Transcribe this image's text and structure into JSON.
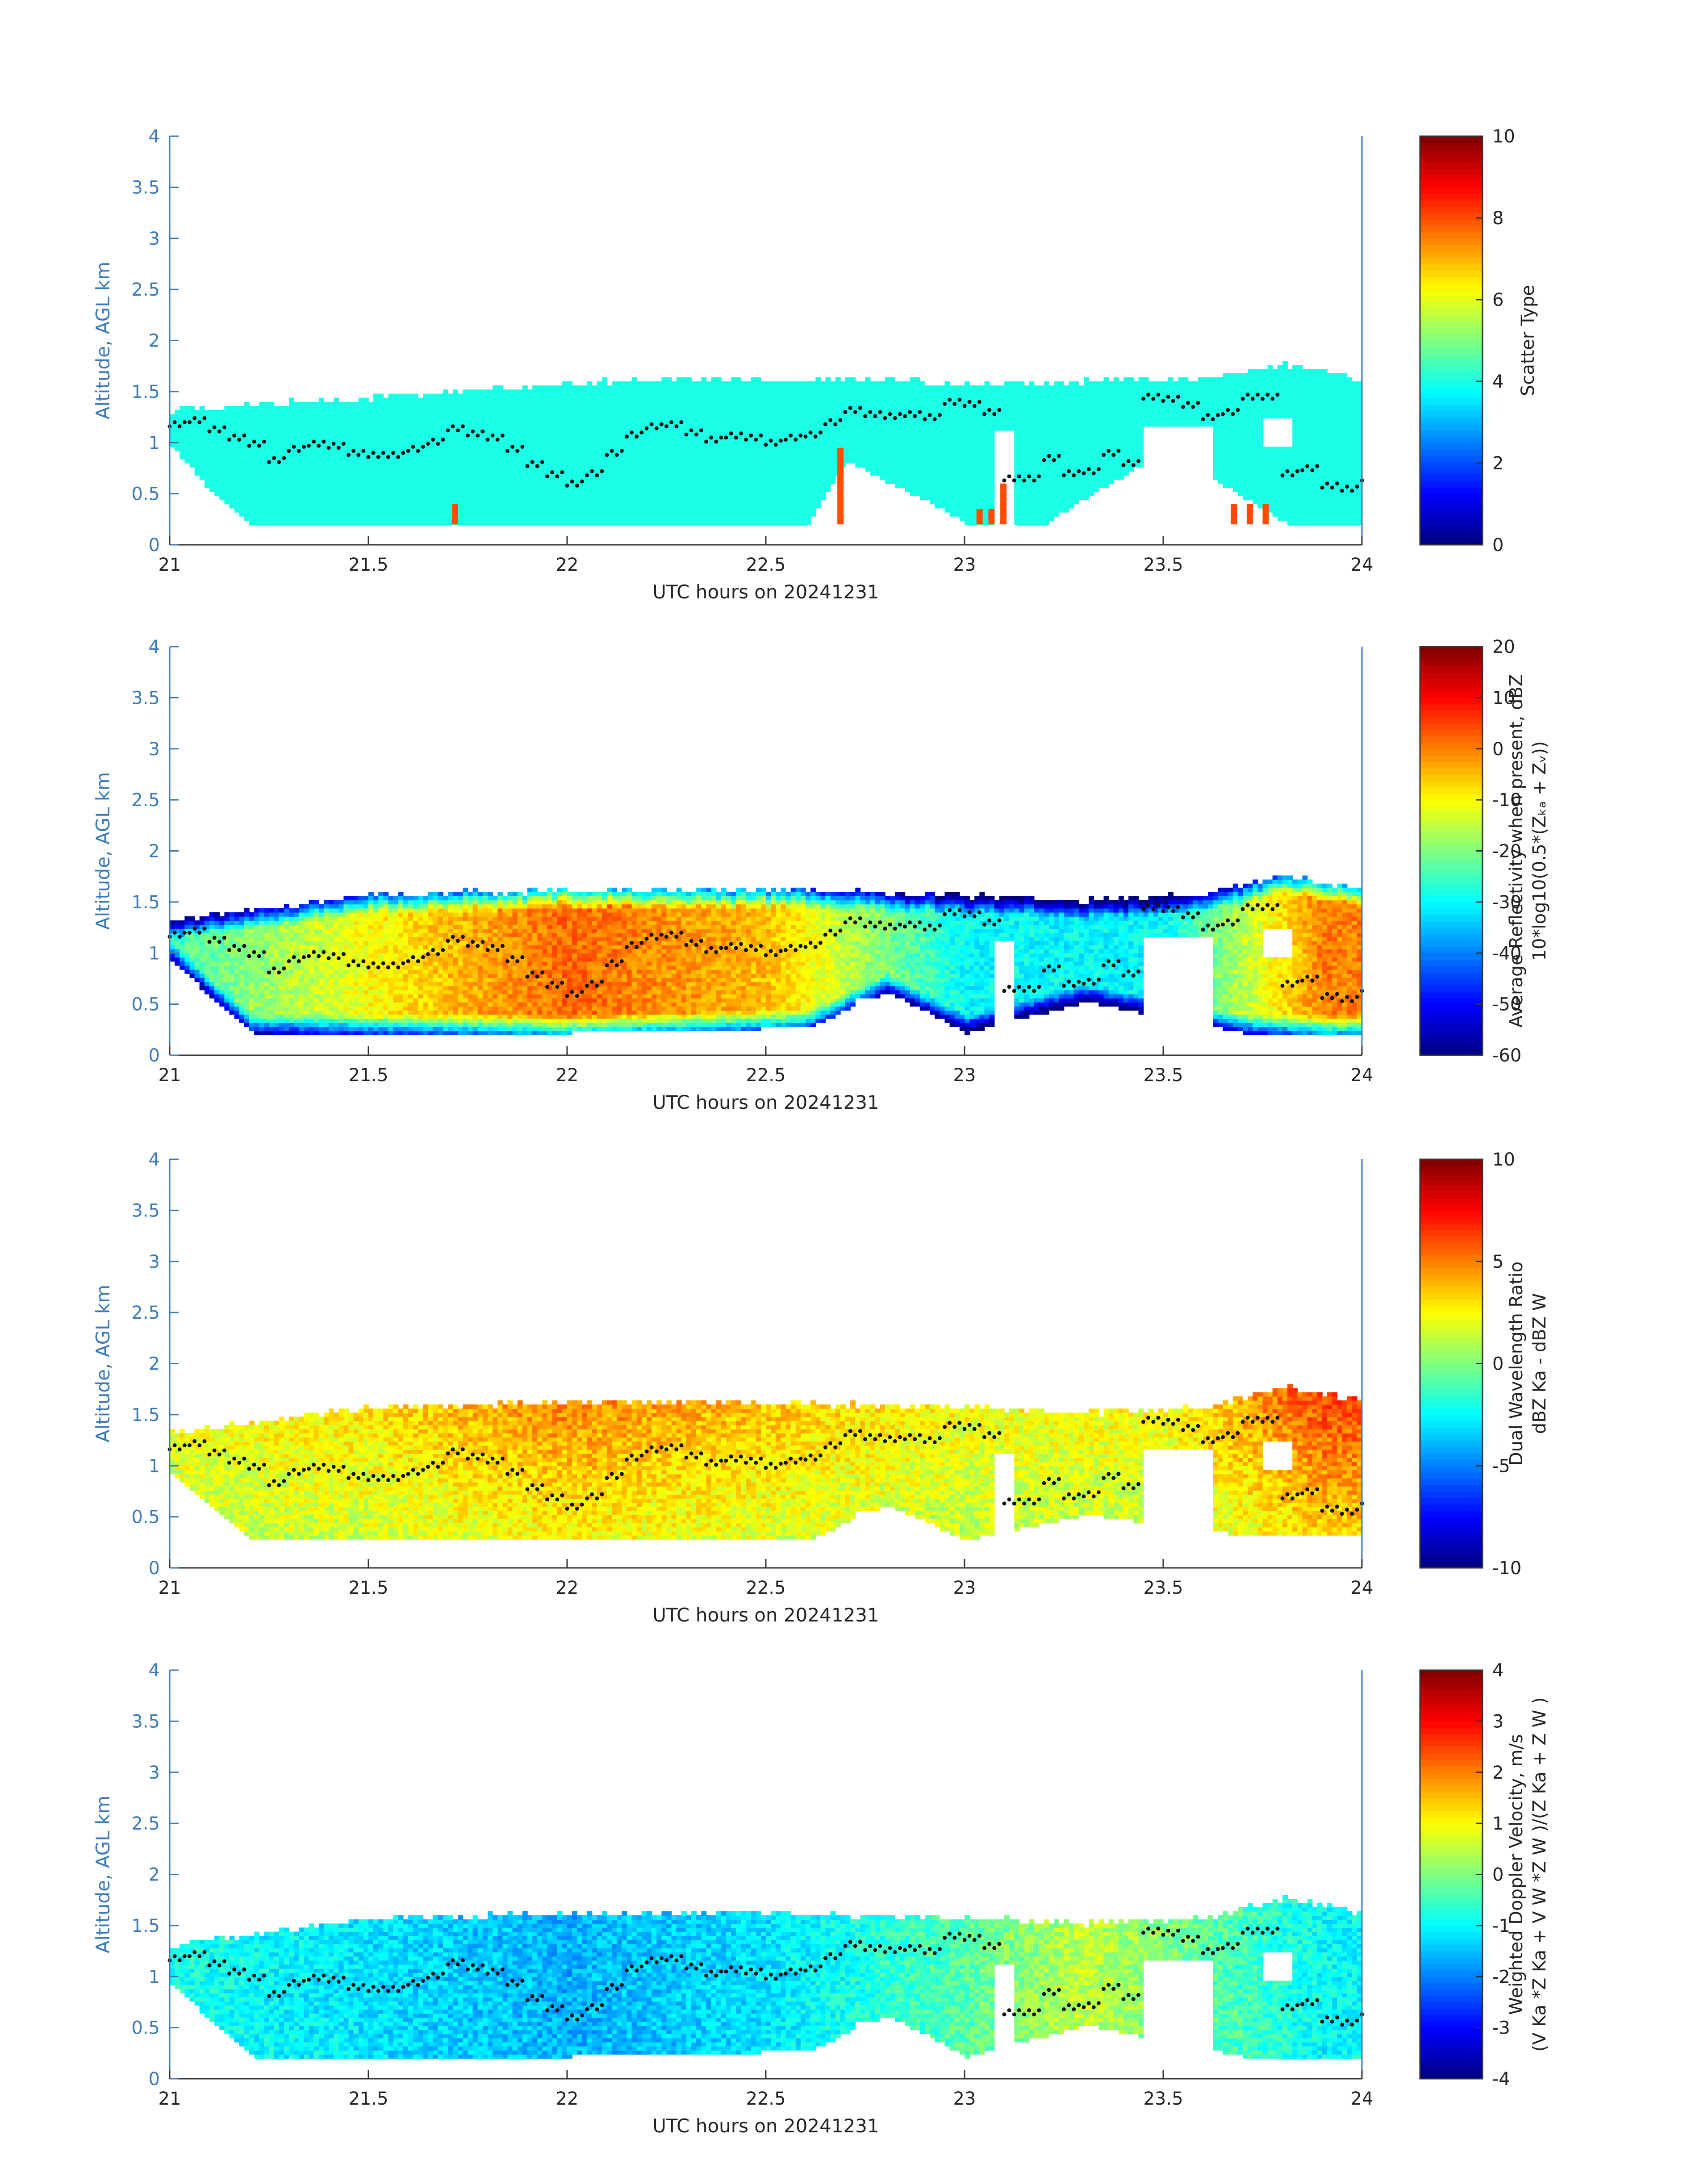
{
  "figure": {
    "panels": [
      {
        "ylabel": "Altitude, AGL km",
        "xlabel": "UTC hours on 20241231",
        "x_ticks": [
          "21",
          "21.5",
          "22",
          "22.5",
          "23",
          "23.5",
          "24"
        ],
        "y_ticks": [
          "0",
          "0.5",
          "1",
          "1.5",
          "2",
          "2.5",
          "3",
          "3.5",
          "4"
        ],
        "colorbar": {
          "label_lines": [
            "Scatter Type"
          ],
          "ticks": [
            "0",
            "2",
            "4",
            "6",
            "8",
            "10"
          ]
        }
      },
      {
        "ylabel": "Altitude, AGL km",
        "xlabel": "UTC hours on 20241231",
        "x_ticks": [
          "21",
          "21.5",
          "22",
          "22.5",
          "23",
          "23.5",
          "24"
        ],
        "y_ticks": [
          "0",
          "0.5",
          "1",
          "1.5",
          "2",
          "2.5",
          "3",
          "3.5",
          "4"
        ],
        "colorbar": {
          "label_lines": [
            "Average Reflectivity when present, dBZ",
            "10*log10(0.5*(Zₖₐ + Zᵥ))"
          ],
          "ticks": [
            "-60",
            "-50",
            "-40",
            "-30",
            "-20",
            "-10",
            "0",
            "10",
            "20"
          ]
        }
      },
      {
        "ylabel": "Altitude, AGL km",
        "xlabel": "UTC hours on 20241231",
        "x_ticks": [
          "21",
          "21.5",
          "22",
          "22.5",
          "23",
          "23.5",
          "24"
        ],
        "y_ticks": [
          "0",
          "0.5",
          "1",
          "1.5",
          "2",
          "2.5",
          "3",
          "3.5",
          "4"
        ],
        "colorbar": {
          "label_lines": [
            "Dual Wavelength Ratio",
            "dBZ Ka - dBZ W"
          ],
          "ticks": [
            "-10",
            "-5",
            "0",
            "5",
            "10"
          ]
        }
      },
      {
        "ylabel": "Altitude, AGL km",
        "xlabel": "UTC hours on 20241231",
        "x_ticks": [
          "21",
          "21.5",
          "22",
          "22.5",
          "23",
          "23.5",
          "24"
        ],
        "y_ticks": [
          "0",
          "0.5",
          "1",
          "1.5",
          "2",
          "2.5",
          "3",
          "3.5",
          "4"
        ],
        "colorbar": {
          "label_lines": [
            "Weighted Doppler Velocity, m/s",
            "(V Ka *Z Ka + V W *Z W )/(Z Ka + Z W )"
          ],
          "ticks": [
            "-4",
            "-3",
            "-2",
            "-1",
            "0",
            "1",
            "2",
            "3",
            "4"
          ]
        }
      }
    ]
  },
  "chart_data": [
    {
      "type": "heatmap",
      "xlabel": "UTC hours on 20241231",
      "ylabel": "Altitude, AGL km",
      "xlim": [
        21,
        24
      ],
      "ylim": [
        0,
        4
      ],
      "colorbar_label": "Scatter Type",
      "clim": [
        0,
        10
      ],
      "echo_top_km": [
        [
          21.0,
          1.3
        ],
        [
          21.2,
          1.35
        ],
        [
          21.4,
          1.4
        ],
        [
          21.6,
          1.45
        ],
        [
          21.8,
          1.5
        ],
        [
          22.0,
          1.55
        ],
        [
          22.2,
          1.6
        ],
        [
          22.4,
          1.6
        ],
        [
          22.6,
          1.6
        ],
        [
          22.8,
          1.6
        ],
        [
          23.0,
          1.55
        ],
        [
          23.2,
          1.55
        ],
        [
          23.4,
          1.6
        ],
        [
          23.6,
          1.6
        ],
        [
          23.8,
          1.75
        ],
        [
          24.0,
          1.6
        ]
      ],
      "echo_base_km": [
        [
          21.0,
          0.95
        ],
        [
          21.1,
          0.5
        ],
        [
          21.2,
          0.2
        ],
        [
          21.7,
          0.2
        ],
        [
          22.0,
          0.2
        ],
        [
          22.6,
          0.2
        ],
        [
          22.7,
          0.8
        ],
        [
          23.0,
          0.2
        ],
        [
          23.2,
          0.2
        ],
        [
          23.5,
          0.9
        ],
        [
          23.8,
          0.2
        ],
        [
          24.0,
          0.2
        ]
      ],
      "dominant_value": 4,
      "secondary_points": [
        [
          21.71,
          0.4,
          8
        ],
        [
          22.68,
          0.95,
          8
        ],
        [
          23.03,
          0.35,
          8
        ],
        [
          23.06,
          0.35,
          8
        ],
        [
          23.09,
          0.6,
          8
        ],
        [
          23.67,
          0.4,
          8
        ],
        [
          23.71,
          0.4,
          8
        ],
        [
          23.75,
          0.4,
          8
        ]
      ],
      "overlay_dots_km": [
        [
          21.0,
          1.18
        ],
        [
          21.05,
          1.22
        ],
        [
          21.1,
          1.13
        ],
        [
          21.15,
          1.05
        ],
        [
          21.2,
          0.99
        ],
        [
          21.25,
          0.83
        ],
        [
          21.3,
          0.94
        ],
        [
          21.35,
          0.99
        ],
        [
          21.4,
          0.97
        ],
        [
          21.45,
          0.9
        ],
        [
          21.5,
          0.88
        ],
        [
          21.55,
          0.88
        ],
        [
          21.6,
          0.94
        ],
        [
          21.65,
          1.01
        ],
        [
          21.7,
          1.14
        ],
        [
          21.75,
          1.09
        ],
        [
          21.8,
          1.05
        ],
        [
          21.85,
          0.94
        ],
        [
          21.9,
          0.79
        ],
        [
          21.95,
          0.69
        ],
        [
          22.0,
          0.6
        ],
        [
          22.05,
          0.7
        ],
        [
          22.1,
          0.9
        ],
        [
          22.15,
          1.08
        ],
        [
          22.2,
          1.16
        ],
        [
          22.25,
          1.18
        ],
        [
          22.3,
          1.1
        ],
        [
          22.35,
          1.03
        ],
        [
          22.4,
          1.07
        ],
        [
          22.45,
          1.05
        ],
        [
          22.5,
          1.0
        ],
        [
          22.55,
          1.05
        ],
        [
          22.6,
          1.08
        ],
        [
          22.65,
          1.2
        ],
        [
          22.7,
          1.32
        ],
        [
          22.75,
          1.28
        ],
        [
          22.8,
          1.26
        ],
        [
          22.85,
          1.28
        ],
        [
          22.9,
          1.25
        ],
        [
          22.95,
          1.4
        ],
        [
          23.0,
          1.38
        ],
        [
          23.05,
          1.3
        ],
        [
          23.1,
          0.65
        ],
        [
          23.15,
          0.65
        ],
        [
          23.2,
          0.85
        ],
        [
          23.25,
          0.7
        ],
        [
          23.3,
          0.72
        ],
        [
          23.35,
          0.9
        ],
        [
          23.4,
          0.8
        ],
        [
          23.45,
          1.45
        ],
        [
          23.5,
          1.43
        ],
        [
          23.55,
          1.37
        ],
        [
          23.6,
          1.25
        ],
        [
          23.65,
          1.3
        ],
        [
          23.7,
          1.45
        ],
        [
          23.75,
          1.45
        ],
        [
          23.8,
          0.7
        ],
        [
          23.85,
          0.75
        ],
        [
          23.9,
          0.58
        ],
        [
          23.95,
          0.55
        ],
        [
          24.0,
          0.65
        ]
      ]
    },
    {
      "type": "heatmap",
      "xlabel": "UTC hours on 20241231",
      "ylabel": "Altitude, AGL km",
      "xlim": [
        21,
        24
      ],
      "ylim": [
        0,
        4
      ],
      "colorbar_label": "Average Reflectivity when present, dBZ 10*log10(0.5*(Zka + Zw))",
      "clim": [
        -60,
        20
      ],
      "echo_top_km": [
        [
          21.0,
          1.3
        ],
        [
          21.2,
          1.4
        ],
        [
          21.5,
          1.55
        ],
        [
          22.0,
          1.6
        ],
        [
          22.5,
          1.6
        ],
        [
          23.0,
          1.55
        ],
        [
          23.3,
          1.5
        ],
        [
          23.6,
          1.55
        ],
        [
          23.8,
          1.75
        ],
        [
          24.0,
          1.6
        ]
      ],
      "echo_base_km": [
        [
          21.0,
          0.9
        ],
        [
          21.2,
          0.2
        ],
        [
          22.0,
          0.2
        ],
        [
          22.6,
          0.25
        ],
        [
          22.8,
          0.6
        ],
        [
          23.0,
          0.2
        ],
        [
          23.3,
          0.5
        ],
        [
          23.7,
          0.2
        ],
        [
          24.0,
          0.2
        ]
      ],
      "typical_interior_dbz": [
        [
          21.0,
          -25
        ],
        [
          21.5,
          -10
        ],
        [
          22.0,
          2
        ],
        [
          22.5,
          -5
        ],
        [
          23.0,
          -30
        ],
        [
          23.5,
          -30
        ],
        [
          23.9,
          0
        ]
      ],
      "overlay_dots": "same echo-layer dots as panel 1"
    },
    {
      "type": "heatmap",
      "xlabel": "UTC hours on 20241231",
      "ylabel": "Altitude, AGL km",
      "xlim": [
        21,
        24
      ],
      "ylim": [
        0,
        4
      ],
      "colorbar_label": "Dual Wavelength Ratio dBZ Ka - dBZ W",
      "clim": [
        -10,
        10
      ],
      "echo_top_km": [
        [
          21.0,
          1.3
        ],
        [
          21.2,
          1.4
        ],
        [
          21.5,
          1.55
        ],
        [
          22.0,
          1.6
        ],
        [
          22.5,
          1.6
        ],
        [
          23.0,
          1.55
        ],
        [
          23.3,
          1.5
        ],
        [
          23.6,
          1.55
        ],
        [
          23.8,
          1.75
        ],
        [
          24.0,
          1.6
        ]
      ],
      "echo_base_km": [
        [
          21.0,
          0.9
        ],
        [
          21.2,
          0.25
        ],
        [
          22.0,
          0.25
        ],
        [
          22.6,
          0.25
        ],
        [
          22.8,
          0.6
        ],
        [
          23.0,
          0.25
        ],
        [
          23.3,
          0.5
        ],
        [
          23.7,
          0.3
        ],
        [
          24.0,
          0.3
        ]
      ],
      "typical_interior_db": [
        [
          21.0,
          2
        ],
        [
          21.5,
          2.5
        ],
        [
          22.0,
          4
        ],
        [
          22.5,
          3
        ],
        [
          23.0,
          2
        ],
        [
          23.5,
          2
        ],
        [
          23.9,
          5
        ]
      ],
      "overlay_dots": "same echo-layer dots as panel 1"
    },
    {
      "type": "heatmap",
      "xlabel": "UTC hours on 20241231",
      "ylabel": "Altitude, AGL km",
      "xlim": [
        21,
        24
      ],
      "ylim": [
        0,
        4
      ],
      "colorbar_label": "Weighted Doppler Velocity, m/s (Vka*Zka + Vw*Zw)/(Zka + Zw)",
      "clim": [
        -4,
        4
      ],
      "echo_top_km": [
        [
          21.0,
          1.3
        ],
        [
          21.2,
          1.4
        ],
        [
          21.5,
          1.55
        ],
        [
          22.0,
          1.6
        ],
        [
          22.5,
          1.6
        ],
        [
          23.0,
          1.55
        ],
        [
          23.3,
          1.5
        ],
        [
          23.6,
          1.55
        ],
        [
          23.8,
          1.75
        ],
        [
          24.0,
          1.6
        ]
      ],
      "echo_base_km": [
        [
          21.0,
          0.9
        ],
        [
          21.2,
          0.2
        ],
        [
          22.0,
          0.2
        ],
        [
          22.6,
          0.25
        ],
        [
          22.8,
          0.6
        ],
        [
          23.0,
          0.2
        ],
        [
          23.3,
          0.5
        ],
        [
          23.7,
          0.2
        ],
        [
          24.0,
          0.2
        ]
      ],
      "typical_interior_ms": [
        [
          21.0,
          -0.8
        ],
        [
          21.5,
          -1.2
        ],
        [
          22.0,
          -1.6
        ],
        [
          22.5,
          -1.2
        ],
        [
          23.0,
          -0.3
        ],
        [
          23.3,
          0.5
        ],
        [
          23.9,
          -1.0
        ]
      ],
      "overlay_dots": "same echo-layer dots as panel 1"
    }
  ]
}
